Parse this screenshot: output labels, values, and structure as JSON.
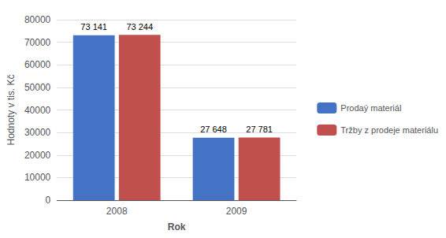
{
  "chart_data": {
    "type": "bar",
    "xlabel": "Rok",
    "ylabel": "Hodnoty v tis. Kč",
    "categories": [
      "2008",
      "2009"
    ],
    "series": [
      {
        "name": "Prodaý materiál",
        "color": "#4472C4",
        "values": [
          73141,
          27648
        ],
        "value_labels": [
          "73 141",
          "27 648"
        ]
      },
      {
        "name": "Tržby z prodeje materiálu",
        "color": "#C0504D",
        "values": [
          73244,
          27781
        ],
        "value_labels": [
          "73 244",
          "27 781"
        ]
      }
    ],
    "ylim": [
      0,
      80000
    ],
    "yticks": [
      0,
      10000,
      20000,
      30000,
      40000,
      50000,
      60000,
      70000,
      80000
    ],
    "grid": true,
    "legend": "right",
    "data_labels": true
  }
}
